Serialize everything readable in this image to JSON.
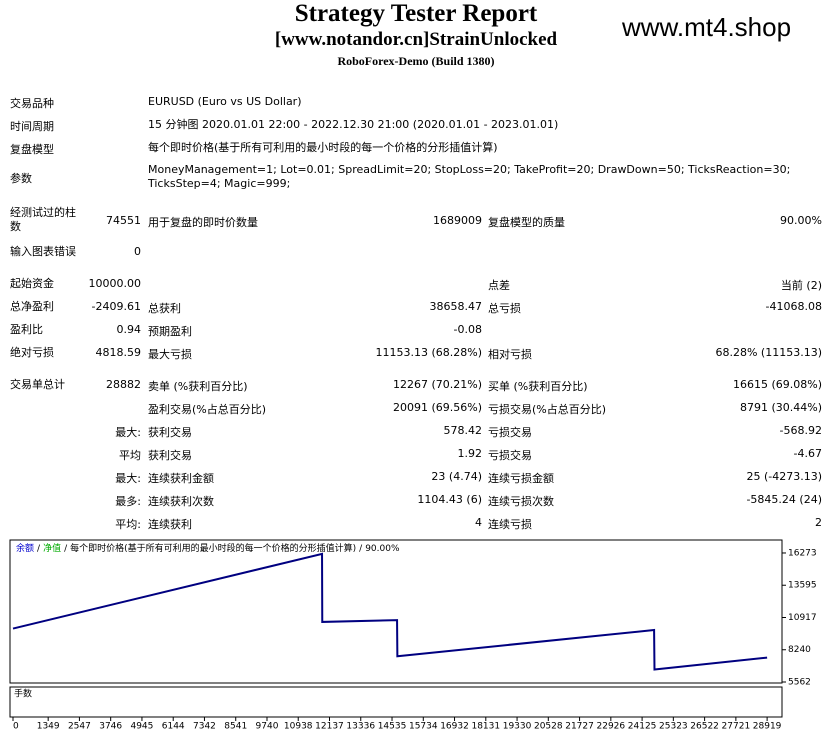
{
  "header": {
    "title": "Strategy Tester Report",
    "subtitle": "[www.notandor.cn]StrainUnlocked",
    "build": "RoboForex-Demo (Build 1380)",
    "watermark": "www.mt4.shop"
  },
  "info": [
    {
      "label": "交易品种",
      "value": "EURUSD (Euro vs US Dollar)"
    },
    {
      "label": "时间周期",
      "value": "15 分钟图 2020.01.01 22:00 - 2022.12.30 21:00 (2020.01.01 - 2023.01.01)"
    },
    {
      "label": "复盘模型",
      "value": "每个即时价格(基于所有可利用的最小时段的每一个价格的分形插值计算)"
    },
    {
      "label": "参数",
      "value": "MoneyManagement=1; Lot=0.01; SpreadLimit=20; StopLoss=20; TakeProfit=20; DrawDown=50; TicksReaction=30; TicksStep=4; Magic=999;"
    }
  ],
  "stats": [
    [
      "经测试过的柱数",
      "74551",
      "用于复盘的即时价数量",
      "1689009",
      "复盘模型的质量",
      "90.00%"
    ],
    [
      "输入图表错误",
      "0",
      null,
      null,
      null,
      null
    ],
    [
      "起始资金",
      "10000.00",
      null,
      null,
      "点差",
      "当前 (2)"
    ],
    [
      "总净盈利",
      "-2409.61",
      "总获利",
      "38658.47",
      "总亏损",
      "-41068.08"
    ],
    [
      "盈利比",
      "0.94",
      "预期盈利",
      "-0.08",
      null,
      null
    ],
    [
      "绝对亏损",
      "4818.59",
      "最大亏损",
      "11153.13 (68.28%)",
      "相对亏损",
      "68.28% (11153.13)"
    ],
    [
      "交易单总计",
      "28882",
      "卖单 (%获利百分比)",
      "12267 (70.21%)",
      "买单 (%获利百分比)",
      "16615 (69.08%)"
    ],
    [
      null,
      null,
      "盈利交易(%占总百分比)",
      "20091 (69.56%)",
      "亏损交易(%占总百分比)",
      "8791 (30.44%)"
    ],
    [
      null,
      "最大:",
      "获利交易",
      "578.42",
      "亏损交易",
      "-568.92"
    ],
    [
      null,
      "平均",
      "获利交易",
      "1.92",
      "亏损交易",
      "-4.67"
    ],
    [
      null,
      "最大:",
      "连续获利金额",
      "23 (4.74)",
      "连续亏损金额",
      "25 (-4273.13)"
    ],
    [
      null,
      "最多:",
      "连续获利次数",
      "1104.43 (6)",
      "连续亏损次数",
      "-5845.24 (24)"
    ],
    [
      null,
      "平均:",
      "连续获利",
      "4",
      "连续亏损",
      "2"
    ]
  ],
  "chart_data": {
    "type": "line",
    "legend": [
      {
        "text": "余额",
        "color": "#0000cc"
      },
      {
        "text": "净值",
        "color": "#00aa00"
      },
      {
        "text": "每个即时价格(基于所有可利用的最小时段的每一个价格的分形插值计算)",
        "color": "#000000"
      },
      {
        "text": "90.00%",
        "color": "#000000"
      }
    ],
    "legend_separator": "/",
    "lower_panel_label": "手数",
    "x": [
      0,
      11851,
      11860,
      14728,
      14740,
      24585,
      24600,
      28919
    ],
    "series": [
      {
        "name": "余额",
        "color": "#000080",
        "values": [
          10000,
          16200,
          10550,
          10700,
          7700,
          9880,
          6600,
          7590
        ]
      }
    ],
    "xlim": [
      -115,
      29490
    ],
    "ylim": [
      5480,
      17350
    ],
    "xticks": [
      0,
      1349,
      2547,
      3746,
      4945,
      6144,
      7342,
      8541,
      9740,
      10938,
      12137,
      13336,
      14535,
      15734,
      16932,
      18131,
      19330,
      20528,
      21727,
      22926,
      24125,
      25323,
      26522,
      27721,
      28919
    ],
    "yticks": [
      16273,
      13595,
      10917,
      8240,
      5562
    ]
  }
}
